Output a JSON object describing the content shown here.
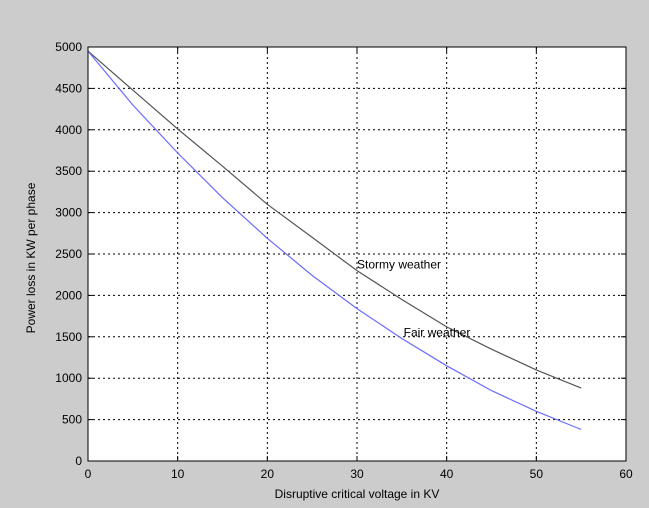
{
  "chart_data": {
    "type": "line",
    "title": "",
    "xlabel": "Disruptive critical voltage in KV",
    "ylabel": "Power loss in KW per phase",
    "xlim": [
      0,
      60
    ],
    "ylim": [
      0,
      5000
    ],
    "xticks": [
      0,
      10,
      20,
      30,
      40,
      50,
      60
    ],
    "yticks": [
      0,
      500,
      1000,
      1500,
      2000,
      2500,
      3000,
      3500,
      4000,
      4500,
      5000
    ],
    "grid": true,
    "series": [
      {
        "name": "Stormy weather",
        "color": "#555555",
        "x": [
          0,
          5,
          10,
          15,
          20,
          25,
          30,
          35,
          40,
          45,
          50,
          55
        ],
        "y": [
          4950,
          4480,
          4010,
          3560,
          3100,
          2700,
          2300,
          1950,
          1620,
          1350,
          1100,
          880
        ]
      },
      {
        "name": "Fair weather",
        "color": "#6b6bff",
        "x": [
          0,
          5,
          10,
          15,
          20,
          25,
          30,
          35,
          40,
          45,
          50,
          55
        ],
        "y": [
          4950,
          4300,
          3720,
          3180,
          2690,
          2240,
          1840,
          1480,
          1150,
          850,
          600,
          380
        ]
      }
    ],
    "annotations": [
      {
        "text": "Stormy weather",
        "x": 30.0,
        "y": 2300
      },
      {
        "text": "Fair weather",
        "x": 35.2,
        "y": 1480
      }
    ]
  }
}
